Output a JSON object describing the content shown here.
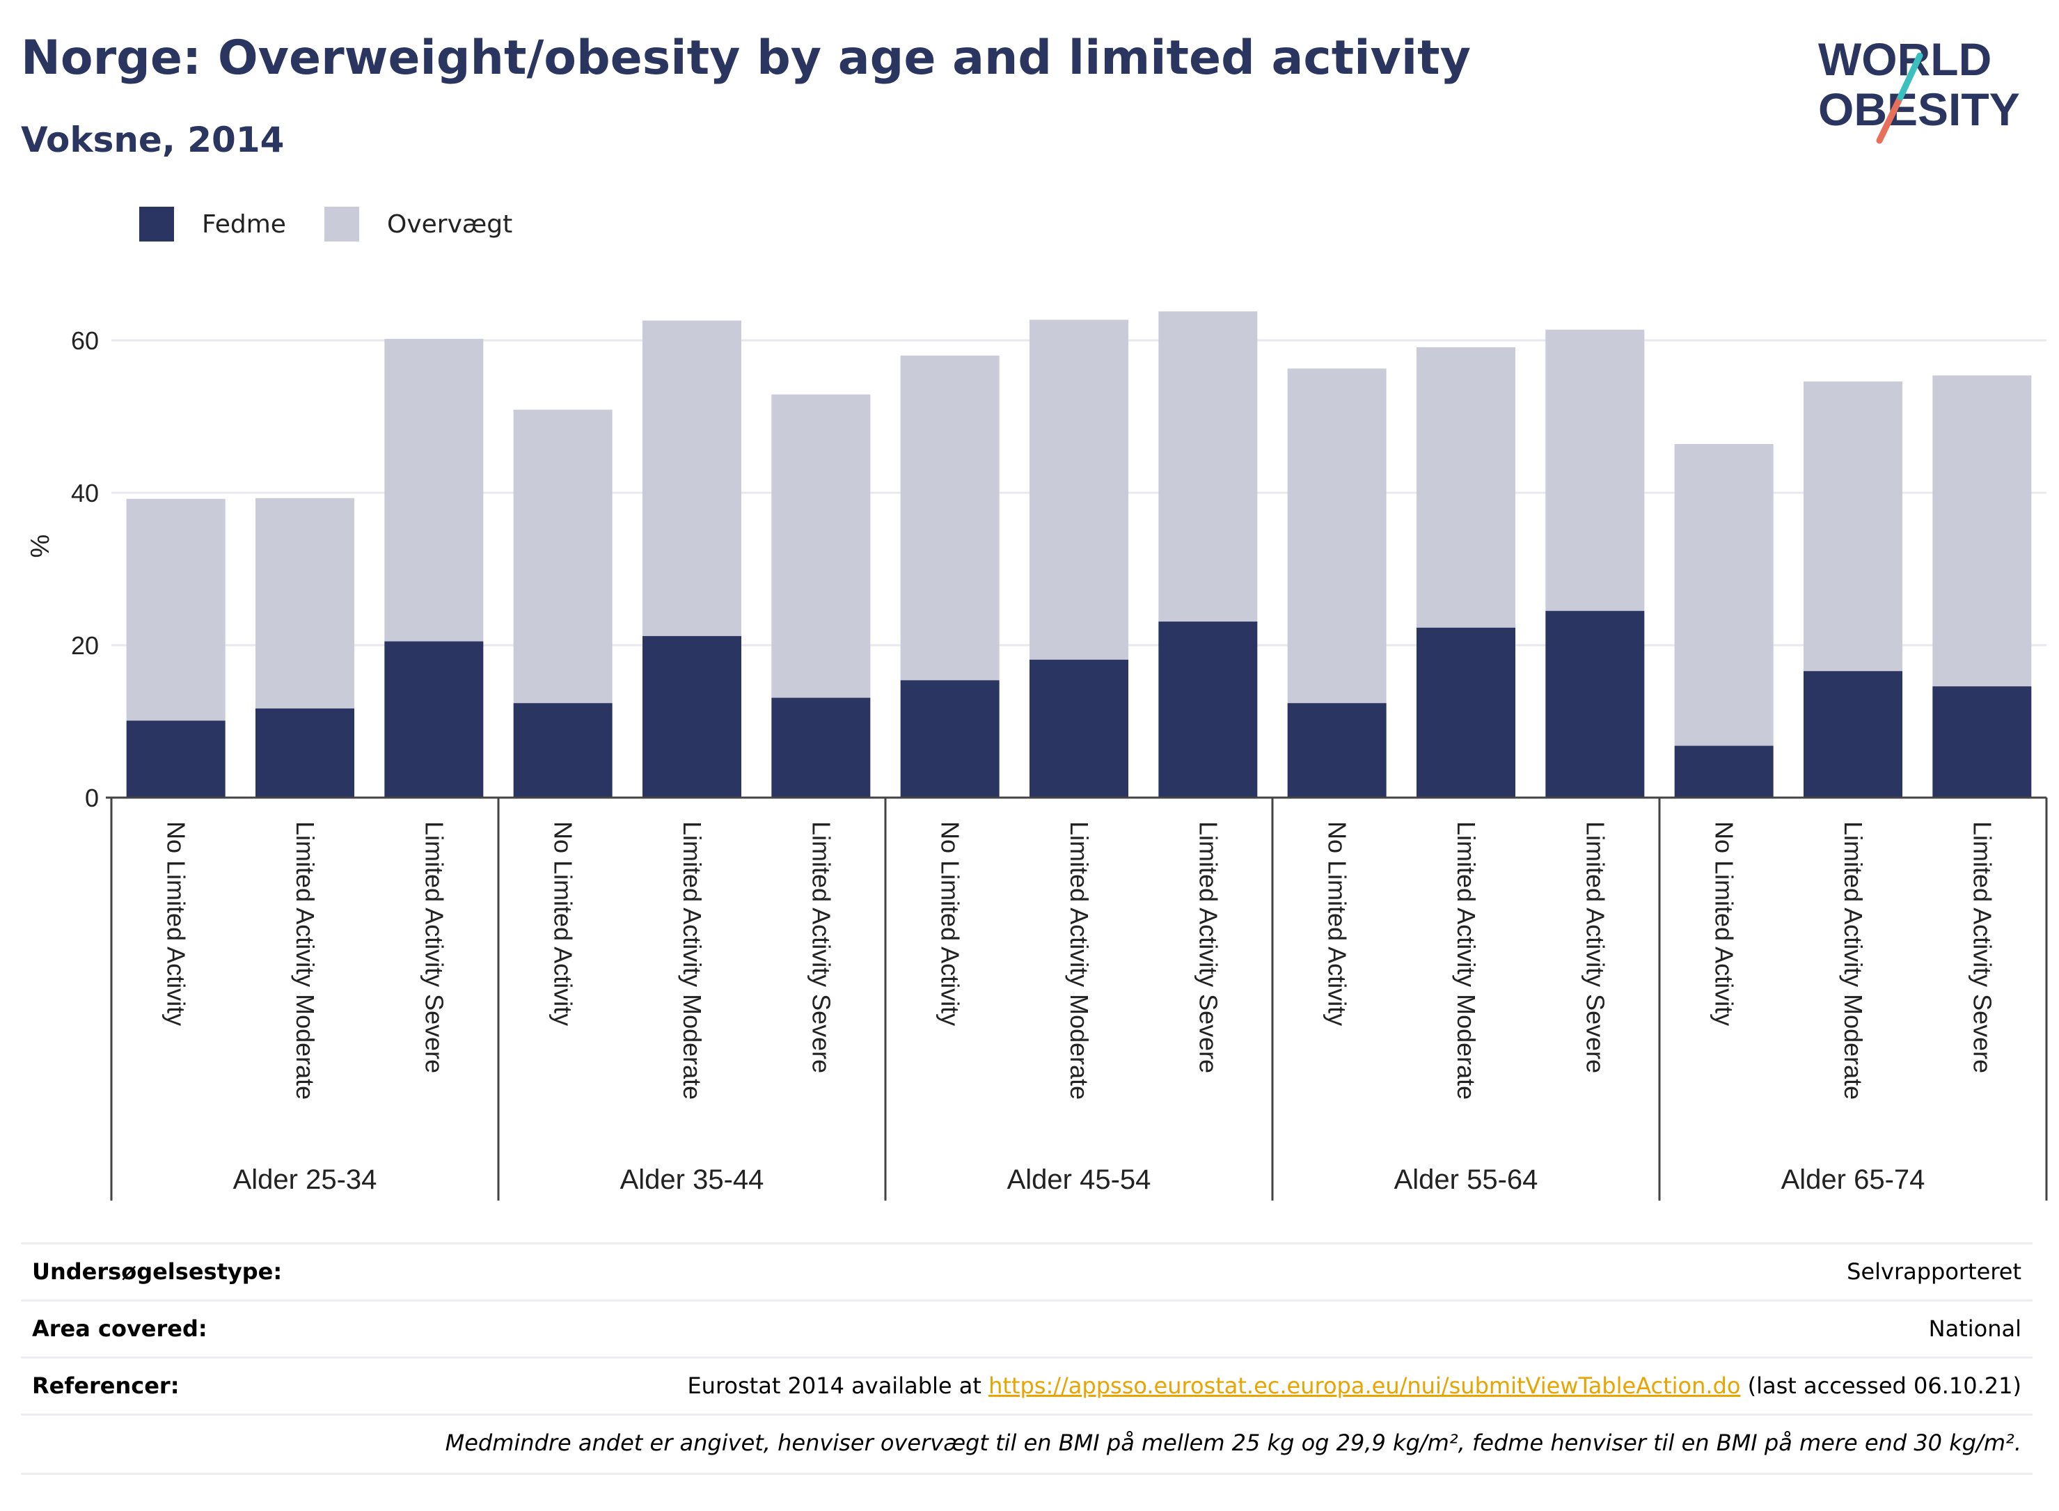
{
  "header": {
    "title": "Norge: Overweight/obesity by age and limited activity",
    "subtitle": "Voksne, 2014"
  },
  "logo": {
    "line1": "WORLD",
    "line2": "OBESITY",
    "text_color": "#2a3560",
    "slash_colors": [
      "#3bbfbf",
      "#e8705a"
    ]
  },
  "colors": {
    "fedme": "#2a3562",
    "overvaegt": "#c9ccd8",
    "grid": "#e8e8ee",
    "axis": "#444444"
  },
  "chart_data": {
    "type": "bar",
    "stacked": true,
    "ylabel": "%",
    "ylim": [
      0,
      70
    ],
    "yticks": [
      0,
      20,
      40,
      60
    ],
    "grid": true,
    "legend_position": "top-left",
    "groups": [
      {
        "label": "Alder 25-34",
        "categories": [
          "No Limited Activity",
          "Limited Activity Moderate",
          "Limited Activity Severe"
        ]
      },
      {
        "label": "Alder 35-44",
        "categories": [
          "No Limited Activity",
          "Limited Activity Moderate",
          "Limited Activity Severe"
        ]
      },
      {
        "label": "Alder 45-54",
        "categories": [
          "No Limited Activity",
          "Limited Activity Moderate",
          "Limited Activity Severe"
        ]
      },
      {
        "label": "Alder 55-64",
        "categories": [
          "No Limited Activity",
          "Limited Activity Moderate",
          "Limited Activity Severe"
        ]
      },
      {
        "label": "Alder 65-74",
        "categories": [
          "No Limited Activity",
          "Limited Activity Moderate",
          "Limited Activity Severe"
        ]
      }
    ],
    "series": [
      {
        "name": "Fedme",
        "values": [
          10.1,
          11.7,
          20.5,
          12.4,
          21.2,
          13.1,
          15.4,
          18.1,
          23.1,
          12.4,
          22.3,
          24.5,
          6.8,
          16.6,
          14.6
        ]
      },
      {
        "name": "Overvægt",
        "values": [
          29.1,
          27.6,
          39.7,
          38.5,
          41.4,
          39.8,
          42.6,
          44.6,
          40.7,
          43.9,
          36.8,
          36.9,
          39.6,
          38.0,
          40.8
        ]
      }
    ]
  },
  "info": {
    "survey_type": {
      "label": "Undersøgelsestype:",
      "value": "Selvrapporteret"
    },
    "area_covered": {
      "label": "Area covered:",
      "value": "National"
    },
    "references": {
      "label": "Referencer:",
      "prefix": "Eurostat 2014 available at ",
      "link": "https://appsso.eurostat.ec.europa.eu/nui/submitViewTableAction.do",
      "suffix": " (last accessed 06.10.21)"
    },
    "note": "Medmindre andet er angivet, henviser overvægt til en BMI på mellem 25 kg og 29,9 kg/m², fedme henviser til en BMI på mere end 30 kg/m²."
  }
}
